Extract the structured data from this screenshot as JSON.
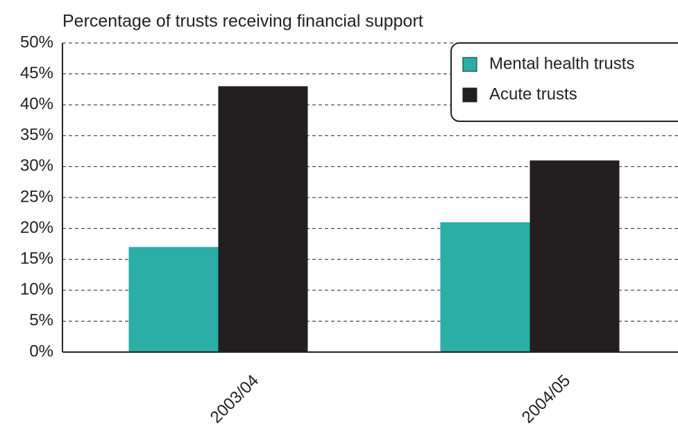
{
  "chart_data": {
    "type": "bar",
    "title": "Percentage of trusts receiving financial support",
    "categories": [
      "2003/04",
      "2004/05"
    ],
    "series": [
      {
        "name": "Mental health trusts",
        "color": "#2aaea5",
        "values": [
          17,
          21
        ]
      },
      {
        "name": "Acute trusts",
        "color": "#231f20",
        "values": [
          43,
          31
        ]
      }
    ],
    "ylim": [
      0,
      50
    ],
    "yticks": [
      {
        "value": 0,
        "label": "0%"
      },
      {
        "value": 5,
        "label": "5%"
      },
      {
        "value": 10,
        "label": "10%"
      },
      {
        "value": 15,
        "label": "15%"
      },
      {
        "value": 20,
        "label": "20%"
      },
      {
        "value": 25,
        "label": "25%"
      },
      {
        "value": 30,
        "label": "30%"
      },
      {
        "value": 35,
        "label": "35%"
      },
      {
        "value": 40,
        "label": "40%"
      },
      {
        "value": 45,
        "label": "45%"
      },
      {
        "value": 50,
        "label": "50%"
      }
    ],
    "grid": true,
    "legend": "upper right"
  }
}
